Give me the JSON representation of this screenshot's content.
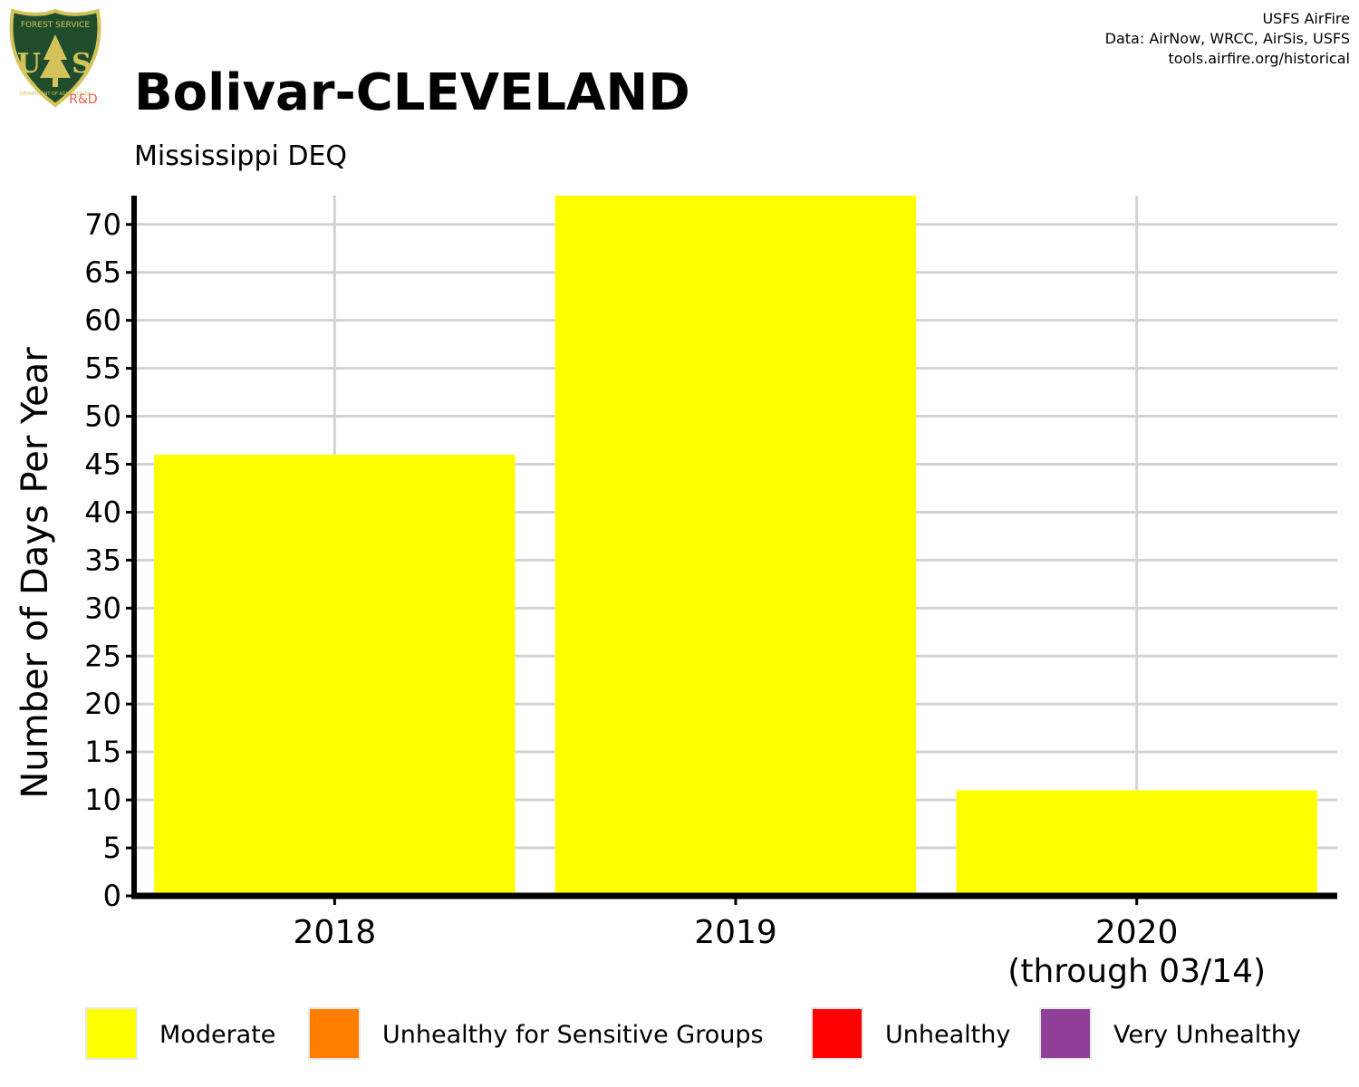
{
  "header": {
    "title": "Bolivar-CLEVELAND",
    "subtitle": "Mississippi DEQ",
    "credits": [
      "USFS AirFire",
      "Data: AirNow, WRCC, AirSis, USFS",
      "tools.airfire.org/historical"
    ]
  },
  "logo": {
    "icon": "usfs-shield-icon",
    "label": "R&D",
    "emblem_text": [
      "FOREST SERVICE",
      "U",
      "S",
      "DEPARTMENT OF AGRICULTURE"
    ],
    "colors": {
      "shield": "#1f4d2b",
      "border": "#d4c35a",
      "label": "#e8604c"
    }
  },
  "chart_data": {
    "type": "bar",
    "title": "Bolivar-CLEVELAND",
    "subtitle": "Mississippi DEQ",
    "ylabel": "Number of Days Per Year",
    "xlabel": "",
    "categories": [
      "2018",
      "2019",
      "2020"
    ],
    "category_sublabels": [
      "",
      "",
      "(through 03/14)"
    ],
    "series": [
      {
        "name": "Moderate",
        "color": "#ffff00",
        "values": [
          46,
          73,
          11
        ]
      },
      {
        "name": "Unhealthy for Sensitive Groups",
        "color": "#ff7e00",
        "values": [
          0,
          0,
          0
        ]
      },
      {
        "name": "Unhealthy",
        "color": "#ff0000",
        "values": [
          0,
          0,
          0
        ]
      },
      {
        "name": "Very Unhealthy",
        "color": "#8f3f97",
        "values": [
          0,
          0,
          0
        ]
      }
    ],
    "ylim": [
      0,
      73
    ],
    "yticks": [
      0,
      5,
      10,
      15,
      20,
      25,
      30,
      35,
      40,
      45,
      50,
      55,
      60,
      65,
      70
    ],
    "grid": true,
    "legend_position": "bottom"
  }
}
